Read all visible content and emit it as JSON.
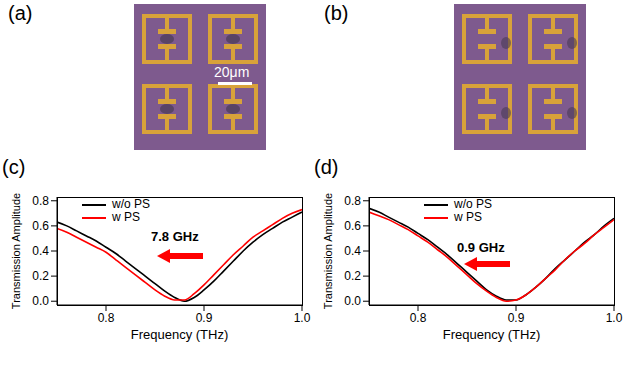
{
  "figure": {
    "panels": [
      {
        "label": "(a)",
        "scale_bar": "20μm"
      },
      {
        "label": "(b)"
      }
    ]
  },
  "chart_data": [
    {
      "type": "line",
      "title": "(c)",
      "x_label": "Frequency (THz)",
      "y_label": "Transmission Amplitude",
      "x": [
        0.75,
        0.76,
        0.77,
        0.78,
        0.79,
        0.8,
        0.81,
        0.82,
        0.83,
        0.84,
        0.85,
        0.86,
        0.87,
        0.88,
        0.89,
        0.9,
        0.91,
        0.92,
        0.93,
        0.94,
        0.95,
        0.96,
        0.97,
        0.98,
        0.99,
        1.0
      ],
      "series": [
        {
          "name": "w/o PS",
          "color": "#000000",
          "values": [
            0.63,
            0.6,
            0.56,
            0.52,
            0.48,
            0.43,
            0.38,
            0.32,
            0.26,
            0.2,
            0.14,
            0.08,
            0.03,
            0.0,
            0.03,
            0.09,
            0.16,
            0.24,
            0.32,
            0.4,
            0.47,
            0.53,
            0.58,
            0.63,
            0.67,
            0.71
          ]
        },
        {
          "name": "w PS",
          "color": "#ff0000",
          "values": [
            0.58,
            0.55,
            0.51,
            0.47,
            0.43,
            0.39,
            0.33,
            0.27,
            0.21,
            0.15,
            0.09,
            0.04,
            0.01,
            0.01,
            0.06,
            0.13,
            0.21,
            0.29,
            0.37,
            0.44,
            0.51,
            0.56,
            0.61,
            0.66,
            0.7,
            0.73
          ]
        }
      ],
      "xlim": [
        0.75,
        1.0
      ],
      "xticks": [
        0.8,
        0.9,
        {
          "value": 1,
          "label": "1.0"
        }
      ],
      "ylim": [
        -0.03,
        0.83
      ],
      "yticks": [
        {
          "value": 0,
          "label": "0.0"
        },
        0.2,
        0.4,
        0.6,
        0.8
      ],
      "legend": "upper left",
      "annotations": [
        {
          "text": "7.8 GHz"
        }
      ]
    },
    {
      "type": "line",
      "title": "(d)",
      "x_label": "Frequency (THz)",
      "y_label": "Transmission Amplitude",
      "x": [
        0.75,
        0.76,
        0.77,
        0.78,
        0.79,
        0.8,
        0.81,
        0.82,
        0.83,
        0.84,
        0.85,
        0.86,
        0.87,
        0.88,
        0.89,
        0.9,
        0.91,
        0.92,
        0.93,
        0.94,
        0.95,
        0.96,
        0.97,
        0.98,
        0.99,
        1.0
      ],
      "series": [
        {
          "name": "w/o PS",
          "color": "#000000",
          "values": [
            0.74,
            0.71,
            0.67,
            0.63,
            0.59,
            0.54,
            0.49,
            0.43,
            0.37,
            0.3,
            0.23,
            0.16,
            0.09,
            0.04,
            0.01,
            0.01,
            0.05,
            0.11,
            0.18,
            0.26,
            0.33,
            0.4,
            0.47,
            0.53,
            0.6,
            0.66
          ]
        },
        {
          "name": "w PS",
          "color": "#ff0000",
          "values": [
            0.71,
            0.68,
            0.65,
            0.61,
            0.57,
            0.52,
            0.47,
            0.41,
            0.35,
            0.28,
            0.21,
            0.14,
            0.08,
            0.03,
            0.0,
            0.01,
            0.05,
            0.11,
            0.18,
            0.25,
            0.33,
            0.4,
            0.46,
            0.53,
            0.59,
            0.65
          ]
        }
      ],
      "xlim": [
        0.75,
        1.0
      ],
      "xticks": [
        0.8,
        0.9,
        {
          "value": 1,
          "label": "1.0"
        }
      ],
      "ylim": [
        -0.03,
        0.83
      ],
      "yticks": [
        {
          "value": 0,
          "label": "0.0"
        },
        0.2,
        0.4,
        0.6,
        0.8
      ],
      "legend": "upper left",
      "annotations": [
        {
          "text": "0.9 GHz"
        }
      ]
    }
  ]
}
